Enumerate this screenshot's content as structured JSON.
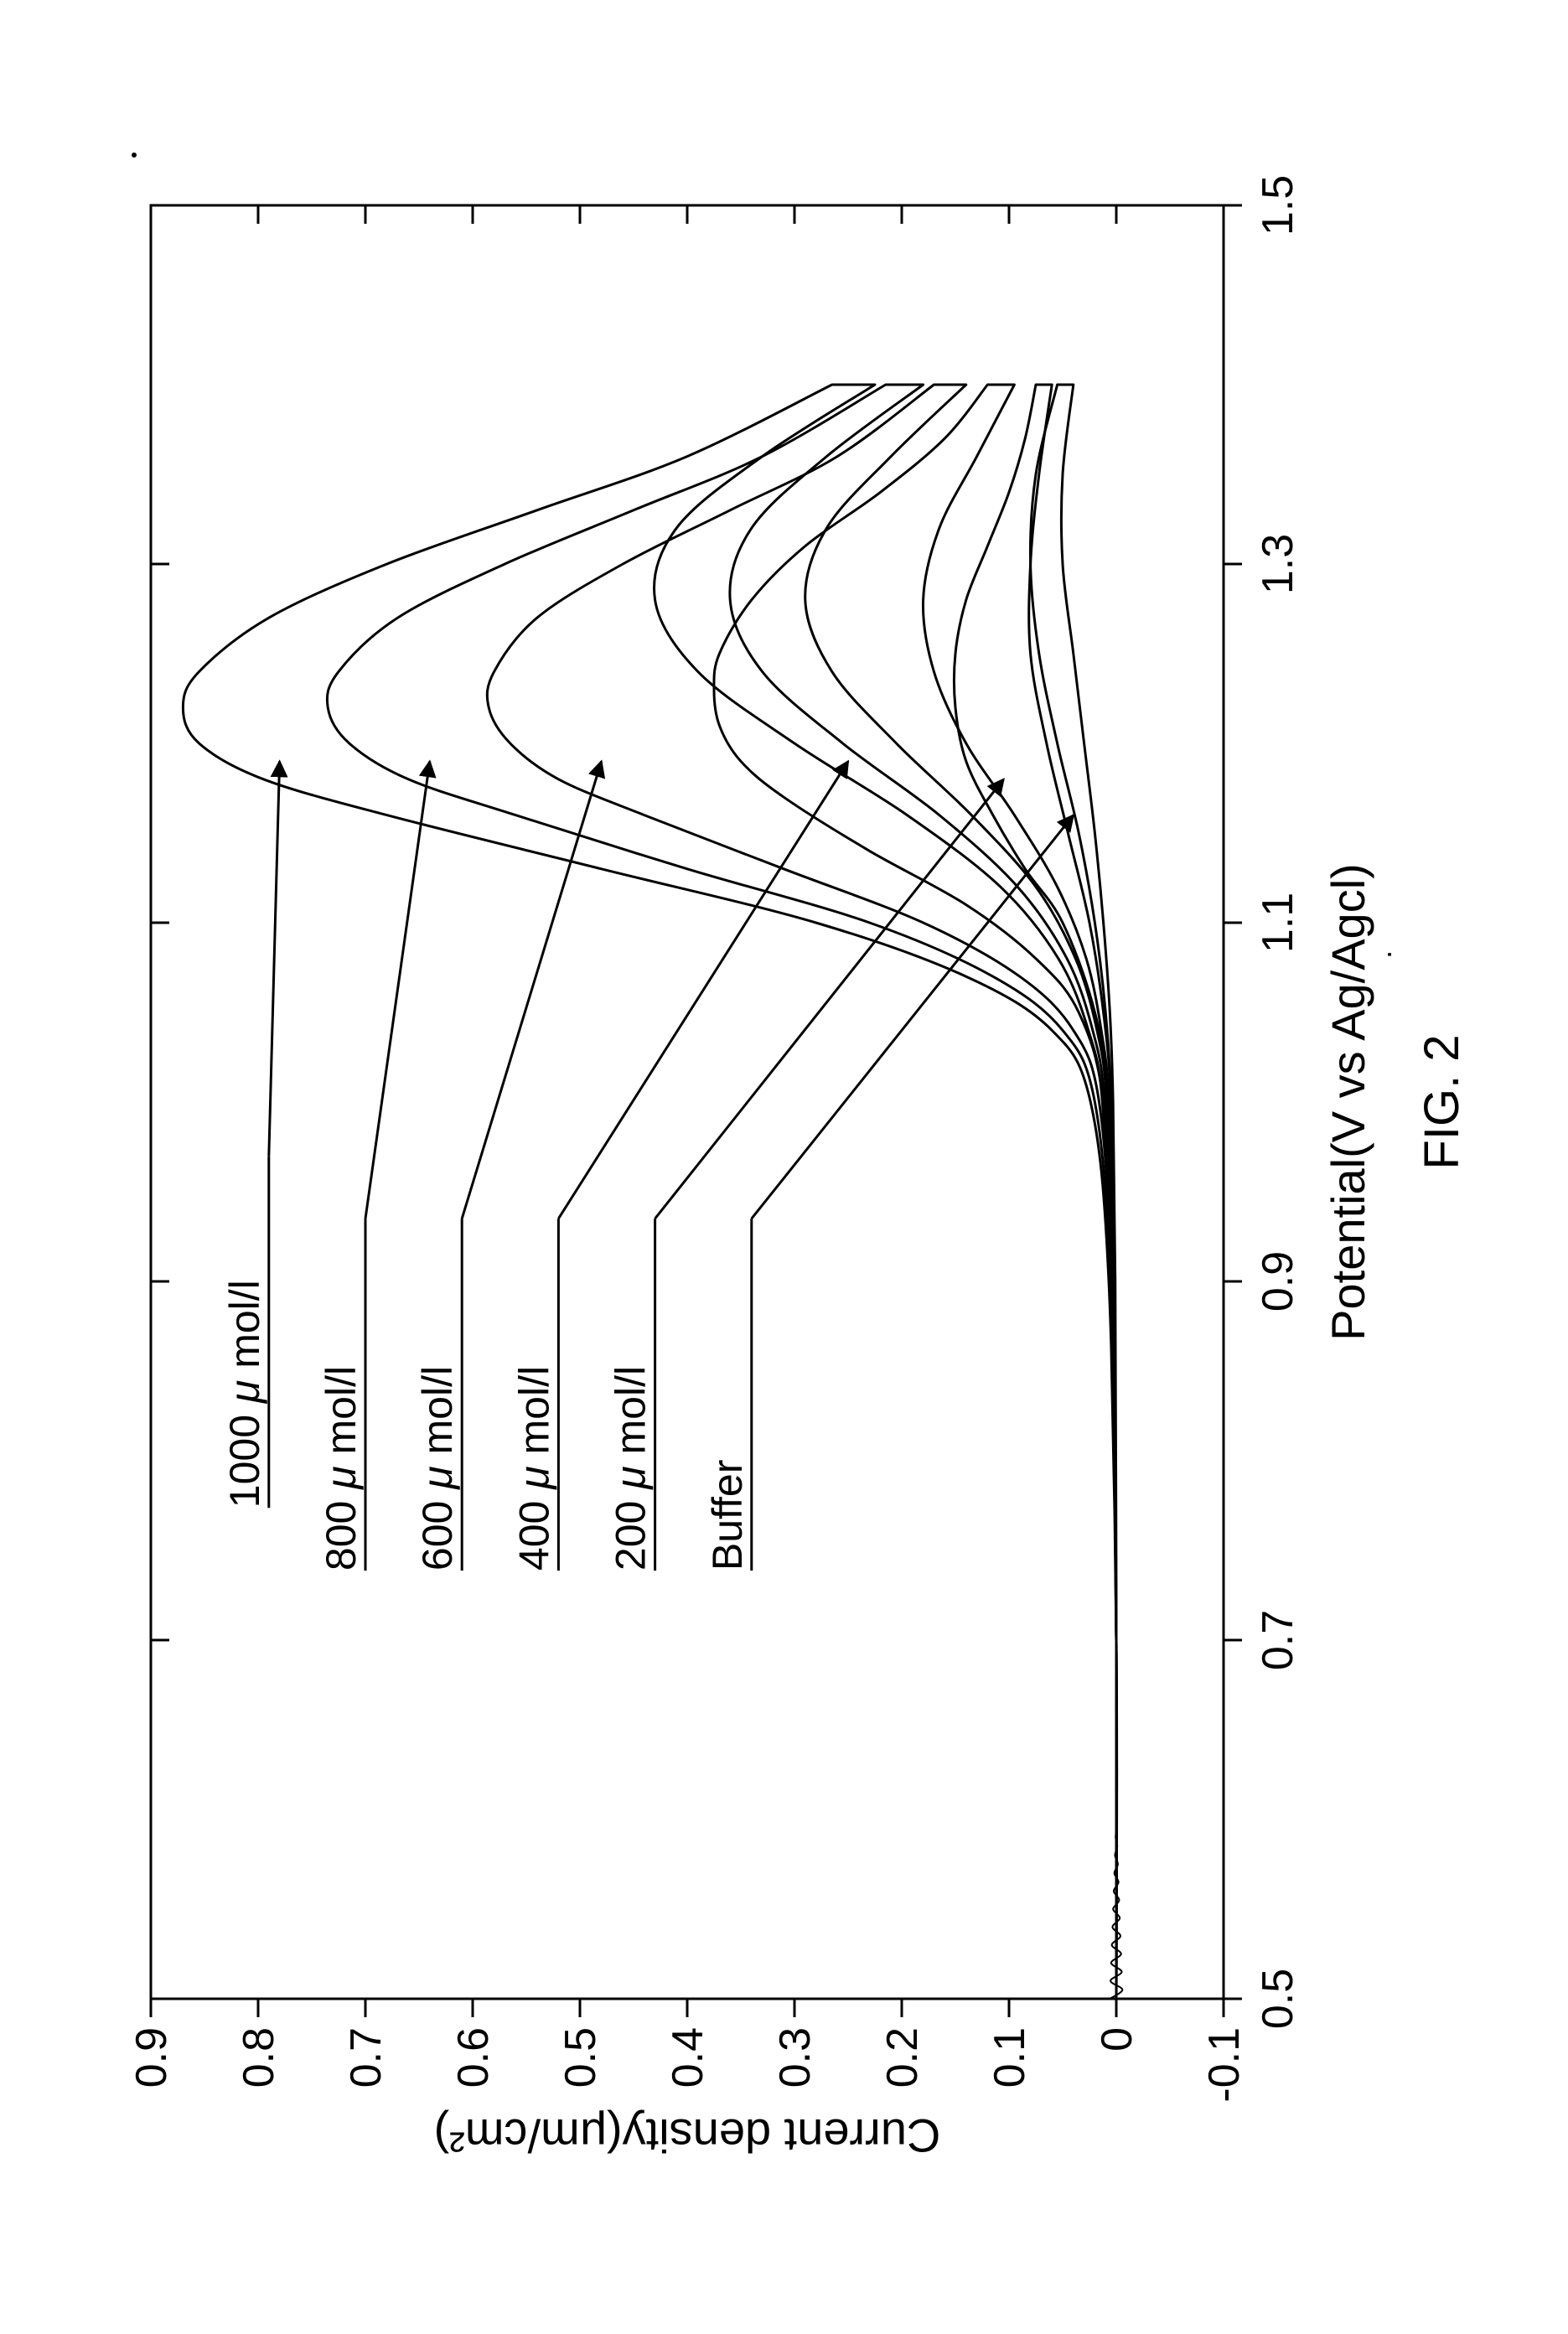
{
  "figure_caption": "FIG. 2",
  "chart": {
    "type": "line",
    "orientation_note": "rotated 90deg CCW as displayed",
    "background_color": "#ffffff",
    "axis_color": "#000000",
    "line_color": "#000000",
    "tick_color": "#000000",
    "text_color": "#000000",
    "line_width": 3,
    "axis_line_width": 3,
    "tick_line_width": 3,
    "font_family": "Arial",
    "caption_fontsize": 58,
    "axis_label_fontsize": 56,
    "tick_label_fontsize": 52,
    "series_label_fontsize": 50,
    "x_axis": {
      "label": "Potential(V vs Ag/Agcl)",
      "min": 0.5,
      "max": 1.5,
      "ticks": [
        0.5,
        0.7,
        0.9,
        1.1,
        1.3,
        1.5
      ],
      "tick_labels": [
        "0.5",
        "0.7",
        "0.9",
        "1.1",
        "1.3",
        "1.5"
      ]
    },
    "y_axis": {
      "label": "Current density(μm/cm²)",
      "min": -0.1,
      "max": 0.9,
      "ticks": [
        -0.1,
        0,
        0.1,
        0.2,
        0.3,
        0.4,
        0.5,
        0.6,
        0.7,
        0.8,
        0.9
      ],
      "tick_labels": [
        "-0.1",
        "0",
        "0.1",
        "0.2",
        "0.3",
        "0.4",
        "0.5",
        "0.6",
        "0.7",
        "0.8",
        "0.9"
      ]
    },
    "series": [
      {
        "name": "buffer",
        "label": "Buffer",
        "label_anchor_x_frac": 0.435,
        "label_y_frac": 0.56,
        "arrow_to": [
          1.16,
          0.04
        ],
        "forward": [
          [
            0.5,
            0.0
          ],
          [
            0.7,
            0.0
          ],
          [
            0.9,
            0.002
          ],
          [
            1.0,
            0.005
          ],
          [
            1.05,
            0.01
          ],
          [
            1.1,
            0.02
          ],
          [
            1.15,
            0.035
          ],
          [
            1.2,
            0.055
          ],
          [
            1.25,
            0.072
          ],
          [
            1.3,
            0.08
          ],
          [
            1.35,
            0.075
          ],
          [
            1.4,
            0.055
          ]
        ],
        "reverse": [
          [
            1.4,
            0.04
          ],
          [
            1.35,
            0.05
          ],
          [
            1.3,
            0.05
          ],
          [
            1.25,
            0.04
          ],
          [
            1.2,
            0.03
          ],
          [
            1.15,
            0.02
          ],
          [
            1.1,
            0.012
          ],
          [
            1.05,
            0.006
          ],
          [
            1.0,
            0.003
          ],
          [
            0.9,
            0.001
          ],
          [
            0.7,
            0.0
          ],
          [
            0.5,
            0.0
          ]
        ]
      },
      {
        "name": "c200",
        "label": "200 μ mol/l",
        "label_anchor_x_frac": 0.435,
        "label_y_frac": 0.47,
        "arrow_to": [
          1.18,
          0.105
        ],
        "forward": [
          [
            0.5,
            0.0
          ],
          [
            0.7,
            0.0
          ],
          [
            0.9,
            0.003
          ],
          [
            1.0,
            0.008
          ],
          [
            1.05,
            0.02
          ],
          [
            1.1,
            0.05
          ],
          [
            1.13,
            0.085
          ],
          [
            1.16,
            0.115
          ],
          [
            1.19,
            0.14
          ],
          [
            1.22,
            0.15
          ],
          [
            1.25,
            0.15
          ],
          [
            1.28,
            0.14
          ],
          [
            1.31,
            0.12
          ],
          [
            1.34,
            0.1
          ],
          [
            1.37,
            0.085
          ],
          [
            1.4,
            0.075
          ]
        ],
        "reverse": [
          [
            1.4,
            0.06
          ],
          [
            1.35,
            0.072
          ],
          [
            1.3,
            0.08
          ],
          [
            1.25,
            0.08
          ],
          [
            1.2,
            0.065
          ],
          [
            1.15,
            0.045
          ],
          [
            1.1,
            0.025
          ],
          [
            1.05,
            0.012
          ],
          [
            1.0,
            0.005
          ],
          [
            0.9,
            0.002
          ],
          [
            0.7,
            0.0
          ],
          [
            0.5,
            0.0
          ]
        ]
      },
      {
        "name": "c400",
        "label": "400 μ mol/l",
        "label_anchor_x_frac": 0.435,
        "label_y_frac": 0.38,
        "arrow_to": [
          1.19,
          0.25
        ],
        "forward": [
          [
            0.5,
            0.0
          ],
          [
            0.7,
            0.0
          ],
          [
            0.9,
            0.004
          ],
          [
            1.0,
            0.012
          ],
          [
            1.05,
            0.035
          ],
          [
            1.08,
            0.075
          ],
          [
            1.11,
            0.14
          ],
          [
            1.14,
            0.23
          ],
          [
            1.17,
            0.31
          ],
          [
            1.19,
            0.35
          ],
          [
            1.21,
            0.37
          ],
          [
            1.23,
            0.375
          ],
          [
            1.25,
            0.37
          ],
          [
            1.28,
            0.34
          ],
          [
            1.31,
            0.29
          ],
          [
            1.34,
            0.22
          ],
          [
            1.37,
            0.16
          ],
          [
            1.4,
            0.12
          ]
        ],
        "reverse": [
          [
            1.4,
            0.095
          ],
          [
            1.36,
            0.13
          ],
          [
            1.32,
            0.165
          ],
          [
            1.28,
            0.18
          ],
          [
            1.24,
            0.17
          ],
          [
            1.2,
            0.14
          ],
          [
            1.16,
            0.095
          ],
          [
            1.12,
            0.055
          ],
          [
            1.08,
            0.028
          ],
          [
            1.04,
            0.014
          ],
          [
            1.0,
            0.007
          ],
          [
            0.9,
            0.003
          ],
          [
            0.7,
            0.0
          ],
          [
            0.5,
            0.0
          ]
        ]
      },
      {
        "name": "c600",
        "label": "600 μ mol/l",
        "label_anchor_x_frac": 0.435,
        "label_y_frac": 0.29,
        "arrow_to": [
          1.19,
          0.48
        ],
        "forward": [
          [
            0.5,
            0.0
          ],
          [
            0.7,
            0.0
          ],
          [
            0.9,
            0.005
          ],
          [
            1.0,
            0.016
          ],
          [
            1.04,
            0.04
          ],
          [
            1.07,
            0.09
          ],
          [
            1.1,
            0.18
          ],
          [
            1.13,
            0.31
          ],
          [
            1.16,
            0.44
          ],
          [
            1.18,
            0.52
          ],
          [
            1.2,
            0.565
          ],
          [
            1.22,
            0.585
          ],
          [
            1.24,
            0.58
          ],
          [
            1.27,
            0.54
          ],
          [
            1.3,
            0.46
          ],
          [
            1.33,
            0.36
          ],
          [
            1.36,
            0.26
          ],
          [
            1.4,
            0.17
          ]
        ],
        "reverse": [
          [
            1.4,
            0.14
          ],
          [
            1.36,
            0.21
          ],
          [
            1.32,
            0.27
          ],
          [
            1.28,
            0.29
          ],
          [
            1.24,
            0.265
          ],
          [
            1.2,
            0.205
          ],
          [
            1.16,
            0.135
          ],
          [
            1.12,
            0.075
          ],
          [
            1.08,
            0.038
          ],
          [
            1.04,
            0.018
          ],
          [
            1.0,
            0.009
          ],
          [
            0.9,
            0.004
          ],
          [
            0.7,
            0.0
          ],
          [
            0.5,
            0.0
          ]
        ]
      },
      {
        "name": "c800",
        "label": "800 μ mol/l",
        "label_anchor_x_frac": 0.435,
        "label_y_frac": 0.2,
        "arrow_to": [
          1.19,
          0.64
        ],
        "forward": [
          [
            0.5,
            0.0
          ],
          [
            0.7,
            0.0
          ],
          [
            0.9,
            0.006
          ],
          [
            1.0,
            0.02
          ],
          [
            1.04,
            0.05
          ],
          [
            1.07,
            0.115
          ],
          [
            1.1,
            0.23
          ],
          [
            1.13,
            0.4
          ],
          [
            1.16,
            0.56
          ],
          [
            1.18,
            0.66
          ],
          [
            1.2,
            0.715
          ],
          [
            1.22,
            0.735
          ],
          [
            1.24,
            0.725
          ],
          [
            1.27,
            0.67
          ],
          [
            1.3,
            0.57
          ],
          [
            1.33,
            0.45
          ],
          [
            1.36,
            0.33
          ],
          [
            1.4,
            0.215
          ]
        ],
        "reverse": [
          [
            1.4,
            0.18
          ],
          [
            1.36,
            0.27
          ],
          [
            1.32,
            0.34
          ],
          [
            1.28,
            0.36
          ],
          [
            1.24,
            0.33
          ],
          [
            1.2,
            0.255
          ],
          [
            1.16,
            0.165
          ],
          [
            1.12,
            0.092
          ],
          [
            1.08,
            0.046
          ],
          [
            1.04,
            0.022
          ],
          [
            1.0,
            0.011
          ],
          [
            0.9,
            0.005
          ],
          [
            0.7,
            0.0
          ],
          [
            0.5,
            0.0
          ]
        ]
      },
      {
        "name": "c1000",
        "label": "1000 μ mol/l",
        "label_anchor_x_frac": 0.47,
        "label_y_frac": 0.11,
        "arrow_to": [
          1.19,
          0.78
        ],
        "forward": [
          [
            0.5,
            0.0
          ],
          [
            0.7,
            0.0
          ],
          [
            0.9,
            0.007
          ],
          [
            1.0,
            0.024
          ],
          [
            1.04,
            0.06
          ],
          [
            1.07,
            0.14
          ],
          [
            1.1,
            0.28
          ],
          [
            1.13,
            0.48
          ],
          [
            1.16,
            0.68
          ],
          [
            1.18,
            0.795
          ],
          [
            1.2,
            0.855
          ],
          [
            1.22,
            0.87
          ],
          [
            1.24,
            0.855
          ],
          [
            1.27,
            0.79
          ],
          [
            1.3,
            0.68
          ],
          [
            1.33,
            0.54
          ],
          [
            1.36,
            0.4
          ],
          [
            1.4,
            0.265
          ]
        ],
        "reverse": [
          [
            1.4,
            0.225
          ],
          [
            1.36,
            0.33
          ],
          [
            1.32,
            0.41
          ],
          [
            1.28,
            0.43
          ],
          [
            1.24,
            0.39
          ],
          [
            1.2,
            0.3
          ],
          [
            1.16,
            0.195
          ],
          [
            1.12,
            0.108
          ],
          [
            1.08,
            0.054
          ],
          [
            1.04,
            0.026
          ],
          [
            1.0,
            0.013
          ],
          [
            0.9,
            0.006
          ],
          [
            0.7,
            0.0
          ],
          [
            0.5,
            0.0
          ]
        ]
      }
    ]
  }
}
